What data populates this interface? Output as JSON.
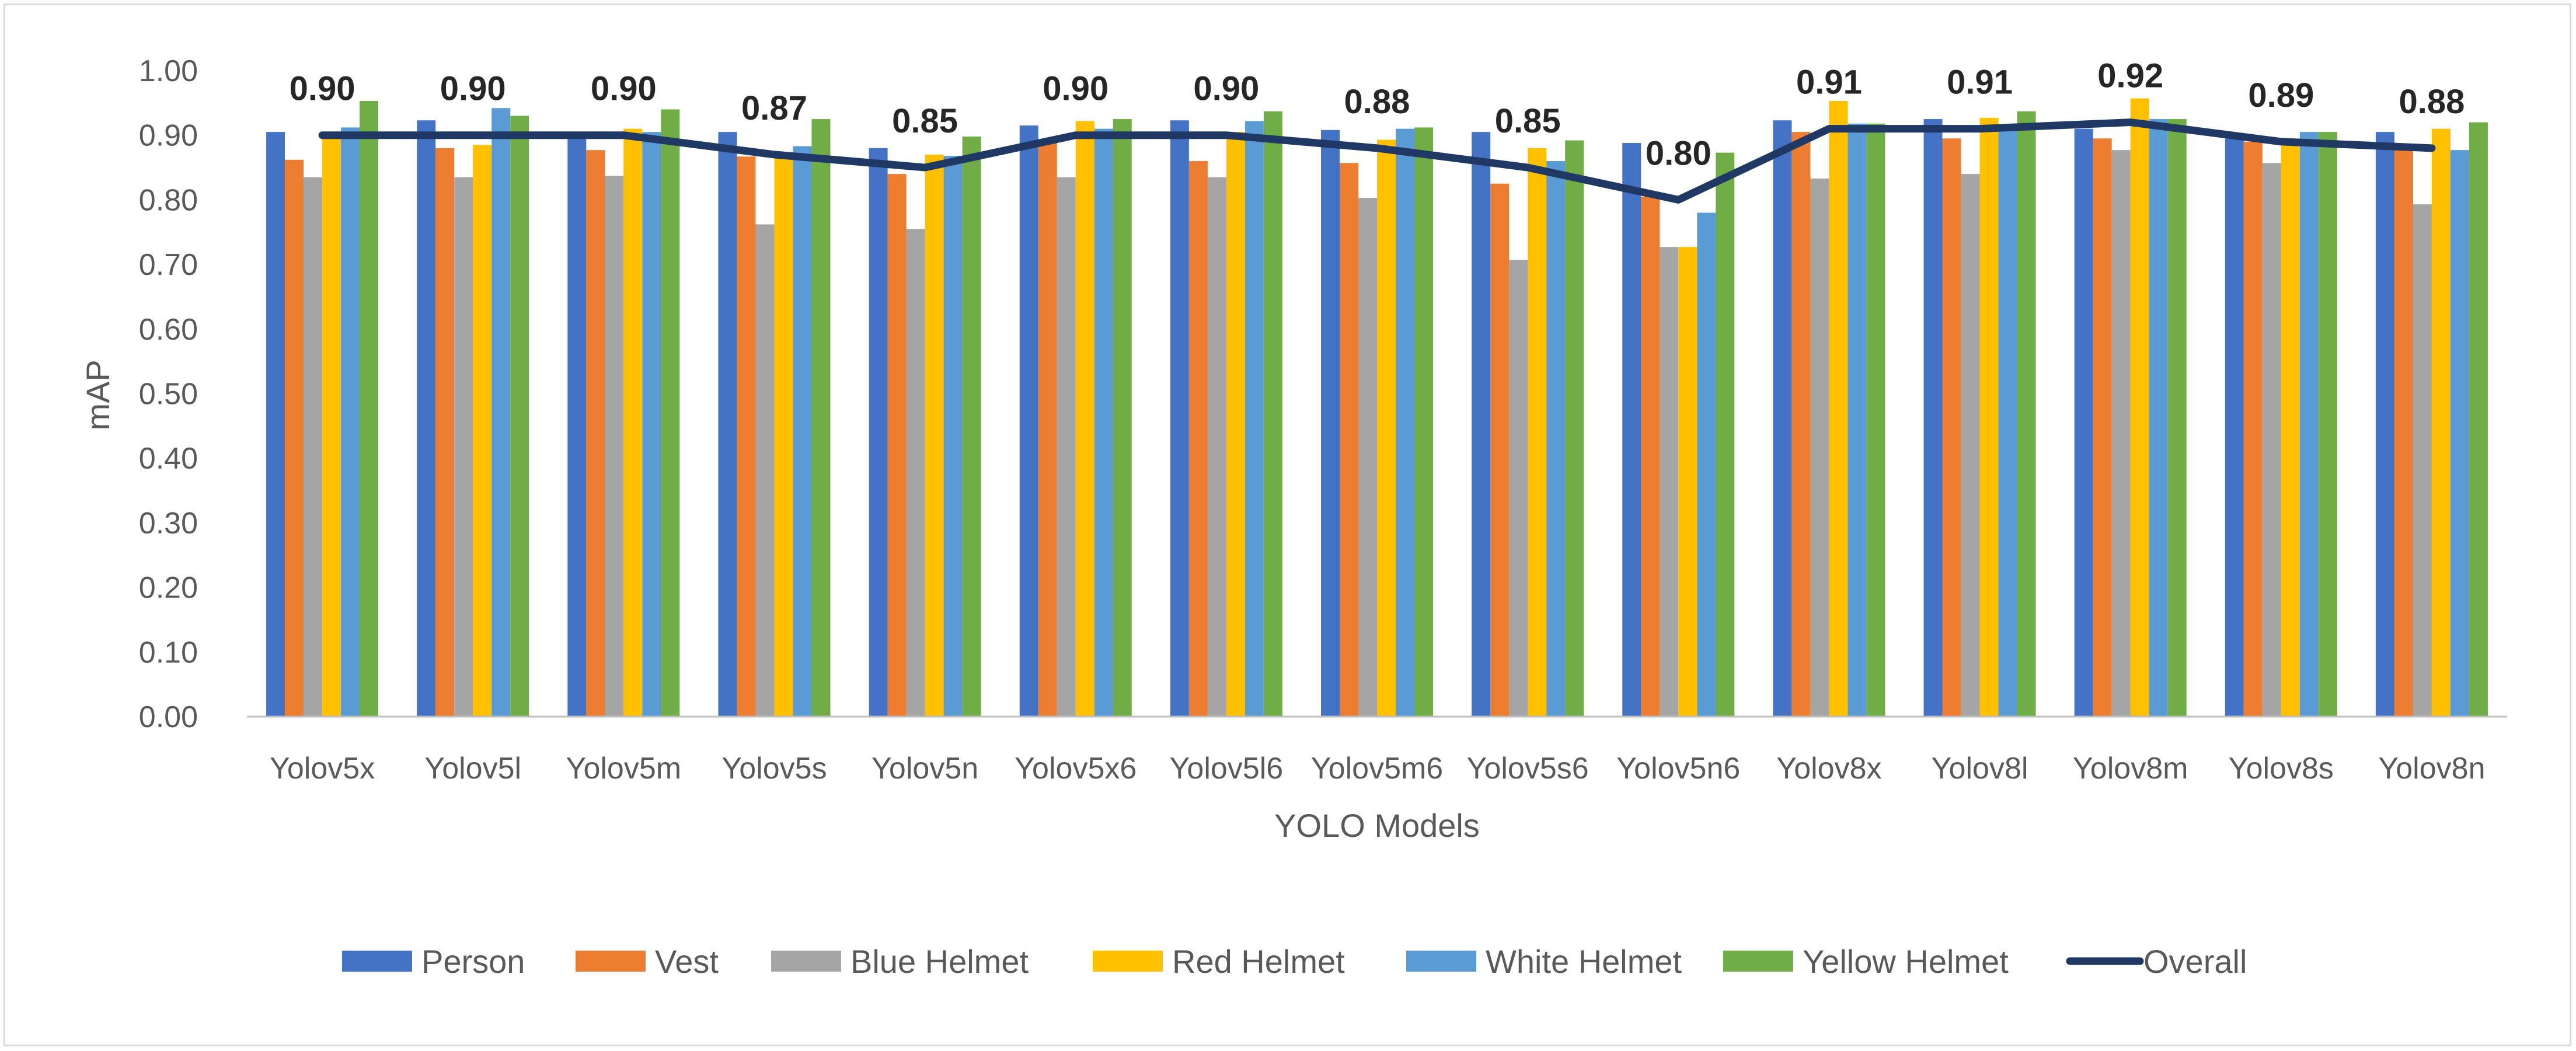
{
  "chart_data": {
    "type": "bar",
    "title": "",
    "xlabel": "YOLO Models",
    "ylabel": "mAP",
    "ylim": [
      0,
      1
    ],
    "ytick_step": 0.1,
    "grid": false,
    "legend_position": "bottom",
    "categories": [
      "Yolov5x",
      "Yolov5l",
      "Yolov5m",
      "Yolov5s",
      "Yolov5n",
      "Yolov5x6",
      "Yolov5l6",
      "Yolov5m6",
      "Yolov5s6",
      "Yolov5n6",
      "Yolov8x",
      "Yolov8l",
      "Yolov8m",
      "Yolov8s",
      "Yolov8n"
    ],
    "series": [
      {
        "name": "Person",
        "type": "bar",
        "color": "#4472C4",
        "values": [
          0.905,
          0.923,
          0.905,
          0.905,
          0.88,
          0.915,
          0.923,
          0.908,
          0.905,
          0.888,
          0.923,
          0.925,
          0.91,
          0.895,
          0.905
        ]
      },
      {
        "name": "Vest",
        "type": "bar",
        "color": "#ED7D31",
        "values": [
          0.862,
          0.88,
          0.877,
          0.867,
          0.84,
          0.893,
          0.86,
          0.857,
          0.825,
          0.805,
          0.905,
          0.895,
          0.895,
          0.89,
          0.88
        ]
      },
      {
        "name": "Blue Helmet",
        "type": "bar",
        "color": "#A5A5A5",
        "values": [
          0.835,
          0.835,
          0.837,
          0.762,
          0.755,
          0.835,
          0.835,
          0.803,
          0.707,
          0.727,
          0.833,
          0.84,
          0.877,
          0.857,
          0.793
        ]
      },
      {
        "name": "Red Helmet",
        "type": "bar",
        "color": "#FFC000",
        "values": [
          0.9,
          0.885,
          0.91,
          0.87,
          0.87,
          0.922,
          0.905,
          0.893,
          0.88,
          0.727,
          0.953,
          0.927,
          0.957,
          0.89,
          0.91
        ]
      },
      {
        "name": "White Helmet",
        "type": "bar",
        "color": "#5B9BD5",
        "values": [
          0.912,
          0.942,
          0.905,
          0.883,
          0.868,
          0.91,
          0.922,
          0.91,
          0.86,
          0.78,
          0.918,
          0.915,
          0.925,
          0.905,
          0.877
        ]
      },
      {
        "name": "Yellow Helmet",
        "type": "bar",
        "color": "#70AD47",
        "values": [
          0.953,
          0.93,
          0.94,
          0.925,
          0.898,
          0.925,
          0.937,
          0.912,
          0.892,
          0.873,
          0.918,
          0.937,
          0.925,
          0.905,
          0.92
        ]
      },
      {
        "name": "Overall",
        "type": "line",
        "color": "#203864",
        "values": [
          0.9,
          0.9,
          0.9,
          0.87,
          0.85,
          0.9,
          0.9,
          0.88,
          0.85,
          0.8,
          0.91,
          0.91,
          0.92,
          0.89,
          0.88
        ],
        "labels": [
          "0.90",
          "0.90",
          "0.90",
          "0.87",
          "0.85",
          "0.90",
          "0.90",
          "0.88",
          "0.85",
          "0.80",
          "0.91",
          "0.91",
          "0.92",
          "0.89",
          "0.88"
        ]
      }
    ]
  }
}
